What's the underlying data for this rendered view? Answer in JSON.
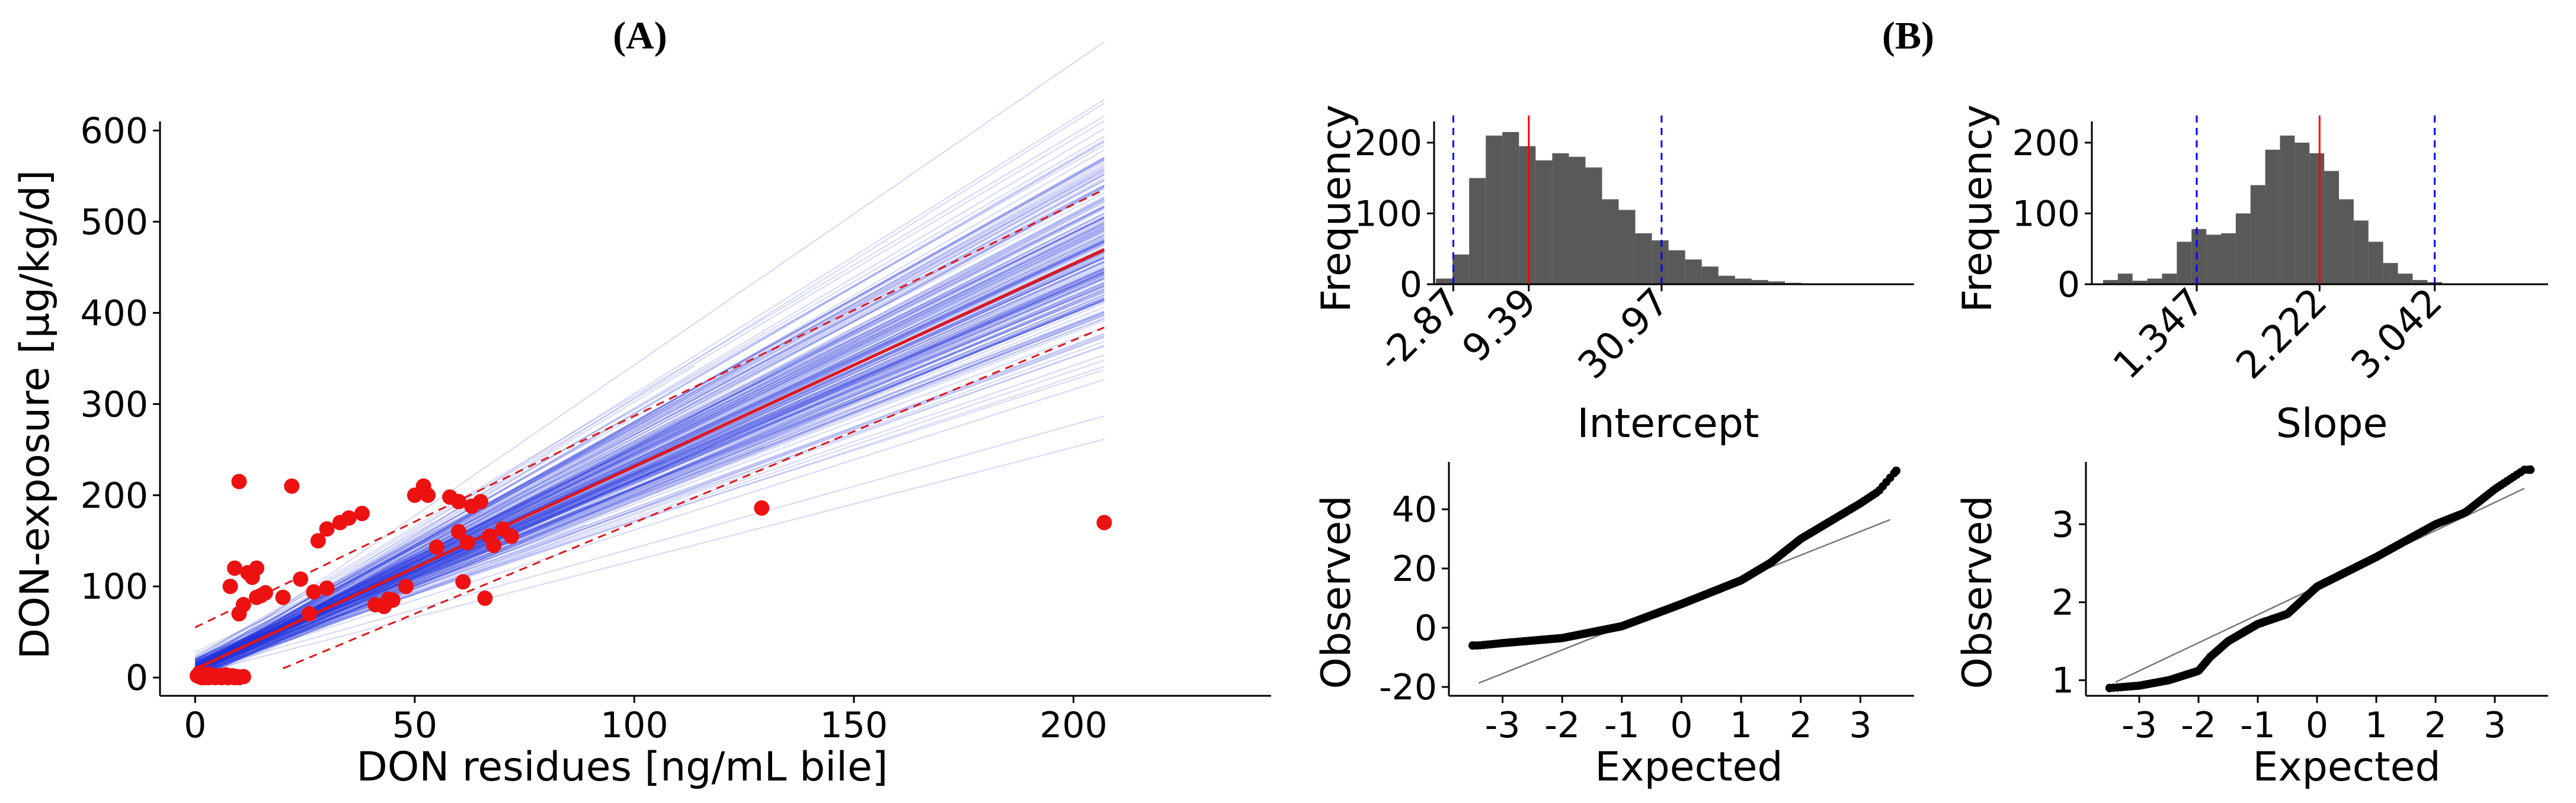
{
  "panels": {
    "a_label": "(A)",
    "b_label": "(B)"
  },
  "chart_data": [
    {
      "type": "scatter",
      "title": "(A)",
      "xlabel": "DON residues [ng/mL bile]",
      "ylabel": "DON-exposure [µg/kg/d]",
      "xlim": [
        -8,
        245
      ],
      "ylim": [
        -20,
        610
      ],
      "xticks": [
        0,
        50,
        100,
        150,
        200
      ],
      "yticks": [
        0,
        100,
        200,
        300,
        400,
        500,
        600
      ],
      "points": [
        [
          0.5,
          2
        ],
        [
          1,
          1
        ],
        [
          1.5,
          0
        ],
        [
          2,
          3
        ],
        [
          2.5,
          1
        ],
        [
          3,
          0
        ],
        [
          3.5,
          2
        ],
        [
          4,
          1
        ],
        [
          4.5,
          0
        ],
        [
          5,
          2
        ],
        [
          5.5,
          1
        ],
        [
          6,
          0
        ],
        [
          6.5,
          1
        ],
        [
          7,
          3
        ],
        [
          7.5,
          0
        ],
        [
          8,
          1
        ],
        [
          8.5,
          2
        ],
        [
          9,
          0
        ],
        [
          9.5,
          1
        ],
        [
          10,
          0
        ],
        [
          1,
          5
        ],
        [
          2,
          0
        ],
        [
          3,
          4
        ],
        [
          6,
          2
        ],
        [
          11,
          1
        ],
        [
          8,
          100
        ],
        [
          9,
          120
        ],
        [
          10,
          215
        ],
        [
          10,
          70
        ],
        [
          11,
          80
        ],
        [
          12,
          115
        ],
        [
          13,
          110
        ],
        [
          14,
          120
        ],
        [
          14,
          88
        ],
        [
          15,
          90
        ],
        [
          16,
          93
        ],
        [
          20,
          88
        ],
        [
          22,
          210
        ],
        [
          24,
          108
        ],
        [
          26,
          70
        ],
        [
          27,
          94
        ],
        [
          28,
          150
        ],
        [
          30,
          98
        ],
        [
          30,
          163
        ],
        [
          33,
          170
        ],
        [
          35,
          175
        ],
        [
          38,
          180
        ],
        [
          41,
          80
        ],
        [
          43,
          78
        ],
        [
          44,
          86
        ],
        [
          45,
          85
        ],
        [
          48,
          100
        ],
        [
          50,
          200
        ],
        [
          52,
          210
        ],
        [
          53,
          200
        ],
        [
          55,
          143
        ],
        [
          58,
          198
        ],
        [
          60,
          160
        ],
        [
          60,
          193
        ],
        [
          61,
          105
        ],
        [
          62,
          148
        ],
        [
          63,
          188
        ],
        [
          65,
          193
        ],
        [
          66,
          87
        ],
        [
          67,
          155
        ],
        [
          68,
          145
        ],
        [
          70,
          163
        ],
        [
          72,
          155
        ],
        [
          129,
          186
        ],
        [
          207,
          170
        ]
      ],
      "fit_line": {
        "name": "fit",
        "intercept": 9.39,
        "slope": 2.222,
        "x": [
          0,
          207
        ]
      },
      "prediction_band": {
        "lower": {
          "intercept": -30,
          "slope": 2.0
        },
        "upper": {
          "intercept": 55,
          "slope": 2.32
        }
      },
      "bootstrap_lines": "blue semi-transparent regression lines from resamples"
    },
    {
      "type": "bar",
      "title": "(B)",
      "xlabel": "Intercept",
      "ylabel": "Frequency",
      "xlim": [
        -6,
        72
      ],
      "ylim": [
        0,
        230
      ],
      "yticks": [
        0,
        100,
        200
      ],
      "xtick_labels": [
        "-2.87",
        "9.39",
        "30.97"
      ],
      "xtick_values": [
        -2.87,
        9.39,
        30.97
      ],
      "bin_width": 2.7,
      "bin_start": -5.7,
      "values": [
        8,
        42,
        150,
        210,
        215,
        195,
        175,
        185,
        180,
        165,
        120,
        105,
        72,
        62,
        48,
        35,
        25,
        12,
        8,
        6,
        4,
        2,
        1,
        1,
        0,
        1
      ],
      "red_line": 9.39,
      "blue_dashed": [
        -2.87,
        30.97
      ]
    },
    {
      "type": "bar",
      "xlabel": "Slope",
      "ylabel": "Frequency",
      "xlim": [
        0.6,
        3.85
      ],
      "ylim": [
        0,
        230
      ],
      "yticks": [
        0,
        100,
        200
      ],
      "xtick_labels": [
        "1.347",
        "2.222",
        "3.042"
      ],
      "xtick_values": [
        1.347,
        2.222,
        3.042
      ],
      "bin_width": 0.105,
      "bin_start": 0.68,
      "values": [
        6,
        15,
        5,
        8,
        15,
        60,
        78,
        70,
        72,
        100,
        140,
        190,
        210,
        200,
        185,
        160,
        120,
        90,
        60,
        30,
        15,
        6,
        3,
        1,
        1
      ],
      "red_line": 2.222,
      "blue_dashed": [
        1.347,
        3.042
      ]
    },
    {
      "type": "scatter",
      "xlabel": "Expected",
      "ylabel": "Observed",
      "xlim": [
        -3.9,
        3.9
      ],
      "ylim": [
        -23,
        56
      ],
      "xticks": [
        -3,
        -2,
        -1,
        0,
        1,
        2,
        3
      ],
      "yticks": [
        -20,
        0,
        20,
        40
      ],
      "qq_line": {
        "intercept": 8.5,
        "slope": 8.0
      },
      "qq_anchors": [
        [
          -3.4,
          -6
        ],
        [
          -3,
          -5.2
        ],
        [
          -2,
          -3.5
        ],
        [
          -1,
          0.5
        ],
        [
          0,
          8
        ],
        [
          1,
          16
        ],
        [
          1.5,
          22
        ],
        [
          2,
          30
        ],
        [
          2.5,
          36
        ],
        [
          3,
          42
        ],
        [
          3.3,
          46
        ],
        [
          3.6,
          53
        ]
      ]
    },
    {
      "type": "scatter",
      "xlabel": "Expected",
      "ylabel": "Observed",
      "xlim": [
        -3.9,
        3.9
      ],
      "ylim": [
        0.8,
        3.8
      ],
      "xticks": [
        -3,
        -2,
        -1,
        0,
        1,
        2,
        3
      ],
      "yticks": [
        1,
        2,
        3
      ],
      "qq_line": {
        "intercept": 2.2,
        "slope": 0.36
      },
      "qq_anchors": [
        [
          -3.5,
          0.9
        ],
        [
          -3,
          0.93
        ],
        [
          -2.5,
          1.0
        ],
        [
          -2,
          1.12
        ],
        [
          -1.8,
          1.3
        ],
        [
          -1.5,
          1.5
        ],
        [
          -1,
          1.72
        ],
        [
          -0.5,
          1.85
        ],
        [
          0,
          2.2
        ],
        [
          1,
          2.58
        ],
        [
          2,
          3.0
        ],
        [
          2.5,
          3.15
        ],
        [
          3,
          3.45
        ],
        [
          3.5,
          3.7
        ]
      ]
    }
  ]
}
